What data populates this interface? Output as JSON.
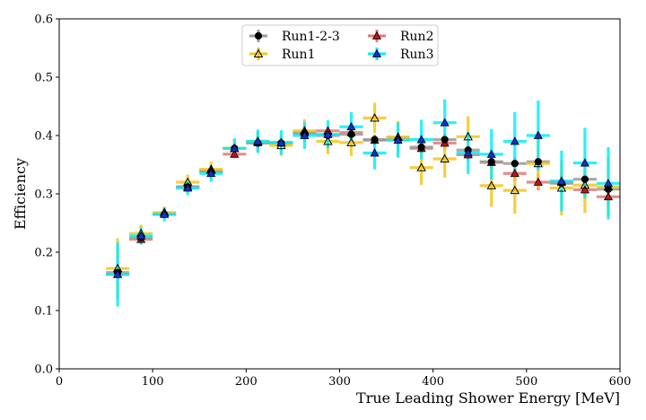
{
  "chart_data": {
    "type": "scatter",
    "xlabel": "True Leading Shower Energy [MeV]",
    "ylabel": "Efficiency",
    "xlim": [
      0,
      600
    ],
    "ylim": [
      0.0,
      0.6
    ],
    "xticks": [
      0,
      100,
      200,
      300,
      400,
      500,
      600
    ],
    "xtick_labels": [
      "0",
      "100",
      "200",
      "300",
      "400",
      "500",
      "600"
    ],
    "yticks": [
      0.0,
      0.1,
      0.2,
      0.3,
      0.4,
      0.5,
      0.6
    ],
    "ytick_labels": [
      "0.0",
      "0.1",
      "0.2",
      "0.3",
      "0.4",
      "0.5",
      "0.6"
    ],
    "grid": false,
    "legend_position": "top-center",
    "x": [
      62.5,
      87.5,
      112.5,
      137.5,
      162.5,
      187.5,
      212.5,
      237.5,
      262.5,
      287.5,
      312.5,
      337.5,
      362.5,
      387.5,
      412.5,
      437.5,
      462.5,
      487.5,
      512.5,
      537.5,
      562.5,
      587.5
    ],
    "x_halfwidth": 12.5,
    "series": [
      {
        "name": "Run1-2-3",
        "marker": "circle",
        "marker_color": "#000000",
        "bar_color": "#9a9a9a",
        "values": [
          0.165,
          0.225,
          0.265,
          0.312,
          0.338,
          0.378,
          0.387,
          0.387,
          0.404,
          0.4,
          0.402,
          0.393,
          0.393,
          0.38,
          0.393,
          0.375,
          0.355,
          0.352,
          0.355,
          0.318,
          0.325,
          0.308
        ],
        "errors": [
          0.012,
          0.008,
          0.006,
          0.006,
          0.006,
          0.006,
          0.006,
          0.006,
          0.007,
          0.007,
          0.008,
          0.008,
          0.009,
          0.009,
          0.01,
          0.01,
          0.01,
          0.011,
          0.011,
          0.012,
          0.012,
          0.013
        ]
      },
      {
        "name": "Run1",
        "marker": "triangle-open",
        "marker_color": "#f5c518",
        "bar_color": "#f5c518",
        "values": [
          0.172,
          0.232,
          0.268,
          0.32,
          0.342,
          0.378,
          0.39,
          0.383,
          0.408,
          0.39,
          0.388,
          0.43,
          0.397,
          0.345,
          0.36,
          0.398,
          0.314,
          0.306,
          0.352,
          0.31,
          0.315,
          0.312
        ],
        "errors": [
          0.052,
          0.015,
          0.01,
          0.013,
          0.013,
          0.016,
          0.018,
          0.018,
          0.02,
          0.022,
          0.023,
          0.026,
          0.028,
          0.03,
          0.032,
          0.035,
          0.036,
          0.04,
          0.042,
          0.047,
          0.048,
          0.05
        ]
      },
      {
        "name": "Run2",
        "marker": "triangle",
        "marker_color": "#c0141b",
        "bar_color": "#e07a78",
        "values": [
          0.162,
          0.222,
          0.265,
          0.312,
          0.34,
          0.368,
          0.388,
          0.388,
          0.405,
          0.408,
          0.405,
          0.392,
          0.397,
          0.378,
          0.387,
          0.367,
          0.354,
          0.335,
          0.32,
          0.32,
          0.307,
          0.295
        ],
        "errors": [
          0.01,
          0.008,
          0.006,
          0.006,
          0.006,
          0.006,
          0.006,
          0.006,
          0.007,
          0.007,
          0.008,
          0.009,
          0.009,
          0.01,
          0.011,
          0.011,
          0.012,
          0.013,
          0.014,
          0.015,
          0.016,
          0.017
        ]
      },
      {
        "name": "Run3",
        "marker": "triangle",
        "marker_color": "#1030d0",
        "bar_color": "#00eeff",
        "values": [
          0.162,
          0.228,
          0.265,
          0.31,
          0.335,
          0.378,
          0.39,
          0.388,
          0.4,
          0.402,
          0.415,
          0.37,
          0.392,
          0.393,
          0.422,
          0.37,
          0.368,
          0.39,
          0.4,
          0.322,
          0.353,
          0.318
        ],
        "errors": [
          0.055,
          0.015,
          0.012,
          0.012,
          0.014,
          0.017,
          0.02,
          0.021,
          0.023,
          0.024,
          0.025,
          0.028,
          0.03,
          0.034,
          0.04,
          0.036,
          0.043,
          0.05,
          0.06,
          0.052,
          0.06,
          0.062
        ]
      }
    ]
  }
}
